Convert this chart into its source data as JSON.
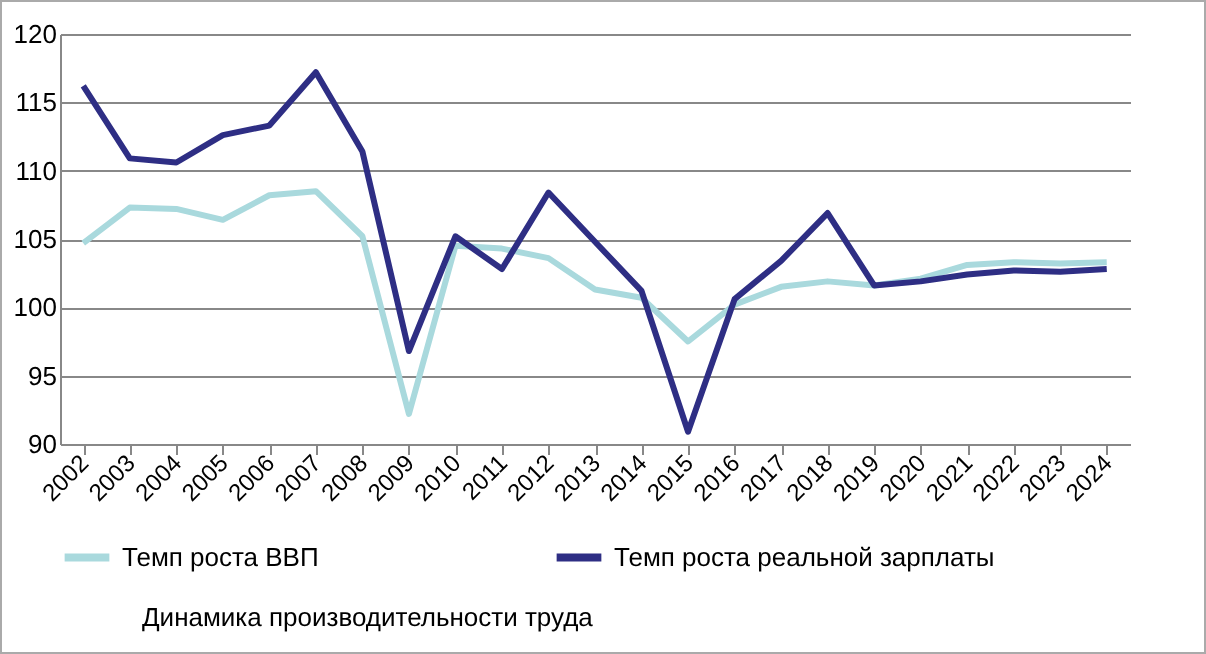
{
  "chart_data": {
    "type": "line",
    "categories": [
      "2002",
      "2003",
      "2004",
      "2005",
      "2006",
      "2007",
      "2008",
      "2009",
      "2010",
      "2011",
      "2012",
      "2013",
      "2014",
      "2015",
      "2016",
      "2017",
      "2018",
      "2019",
      "2020",
      "2021",
      "2022",
      "2023",
      "2024"
    ],
    "series": [
      {
        "name": "Темп роста ВВП",
        "color": "#a9d9dd",
        "values": [
          104.7,
          107.3,
          107.2,
          106.4,
          108.2,
          108.5,
          105.2,
          92.2,
          104.5,
          104.3,
          103.6,
          101.3,
          100.7,
          97.5,
          100.2,
          101.5,
          101.9,
          101.6,
          102.1,
          103.1,
          103.3,
          103.2,
          103.3
        ]
      },
      {
        "name": "Темп роста реальной зарплаты",
        "color": "#2e2e84",
        "values": [
          116.2,
          110.9,
          110.6,
          112.6,
          113.3,
          117.2,
          111.4,
          96.8,
          105.2,
          102.8,
          108.4,
          104.8,
          101.2,
          90.9,
          100.6,
          103.4,
          106.9,
          101.6,
          101.9,
          102.4,
          102.7,
          102.6,
          102.8
        ]
      }
    ],
    "annotations": [
      "Динамика производительности труда"
    ],
    "ylim": [
      90,
      120
    ],
    "yticks": [
      90,
      95,
      100,
      105,
      110,
      115,
      120
    ],
    "grid": "y",
    "legend": "bottom",
    "marker": "none",
    "line_style": "solid"
  }
}
